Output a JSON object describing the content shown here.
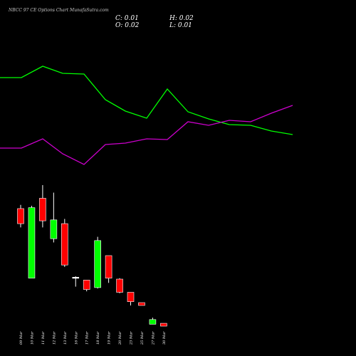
{
  "header": {
    "title": "NBCC 97 CE Options Chart MunafaSutra.com",
    "close": "C: 0.01",
    "high": "H: 0.02",
    "open": "O: 0.02",
    "low": "L: 0.01"
  },
  "chart_data": {
    "type": "candlestick",
    "colors": {
      "up": "#00ff00",
      "down": "#ff0000",
      "doji": "#ffffff",
      "line_a": "#00ff00",
      "line_b": "#cc00cc",
      "background": "#000000"
    },
    "dates": [
      "09 Mar",
      "10 Mar",
      "11 Mar",
      "12 Mar",
      "13 Mar",
      "16 Mar",
      "17 Mar",
      "18 Mar",
      "19 Mar",
      "20 Mar",
      "23 Mar",
      "25 Mar",
      "27 Mar",
      "30 Mar"
    ],
    "ohlc": [
      {
        "o": 6.9,
        "h": 7.1,
        "l": 5.9,
        "c": 6.1
      },
      {
        "o": 3.2,
        "h": 7.05,
        "l": 3.2,
        "c": 6.95
      },
      {
        "o": 7.45,
        "h": 8.15,
        "l": 5.9,
        "c": 6.25
      },
      {
        "o": 5.3,
        "h": 7.75,
        "l": 5.1,
        "c": 6.3
      },
      {
        "o": 6.1,
        "h": 6.35,
        "l": 3.8,
        "c": 3.9
      },
      {
        "o": 3.25,
        "h": 3.3,
        "l": 2.75,
        "c": 3.2
      },
      {
        "o": 3.1,
        "h": 3.1,
        "l": 2.5,
        "c": 2.6
      },
      {
        "o": 2.7,
        "h": 5.4,
        "l": 2.65,
        "c": 5.2
      },
      {
        "o": 4.4,
        "h": 4.4,
        "l": 2.95,
        "c": 3.2
      },
      {
        "o": 3.15,
        "h": 3.2,
        "l": 2.4,
        "c": 2.45
      },
      {
        "o": 2.45,
        "h": 2.45,
        "l": 1.75,
        "c": 1.95
      },
      {
        "o": 1.9,
        "h": 1.9,
        "l": 1.75,
        "c": 1.75
      },
      {
        "o": 0.75,
        "h": 1.1,
        "l": 0.75,
        "c": 1.0
      },
      {
        "o": 0.8,
        "h": 0.8,
        "l": 0.65,
        "c": 0.65
      }
    ],
    "line_a_values": [
      109,
      109,
      93,
      103,
      104,
      140,
      156,
      166,
      125,
      157,
      167,
      175,
      176,
      184,
      189
    ],
    "line_b_values": [
      208,
      208,
      195,
      216,
      231,
      203,
      201,
      195,
      196,
      171,
      176,
      169,
      171,
      159,
      148
    ],
    "line_x_positions": [
      0,
      30,
      60,
      88,
      118,
      148,
      176,
      206,
      235,
      264,
      293,
      322,
      352,
      381,
      411
    ]
  }
}
